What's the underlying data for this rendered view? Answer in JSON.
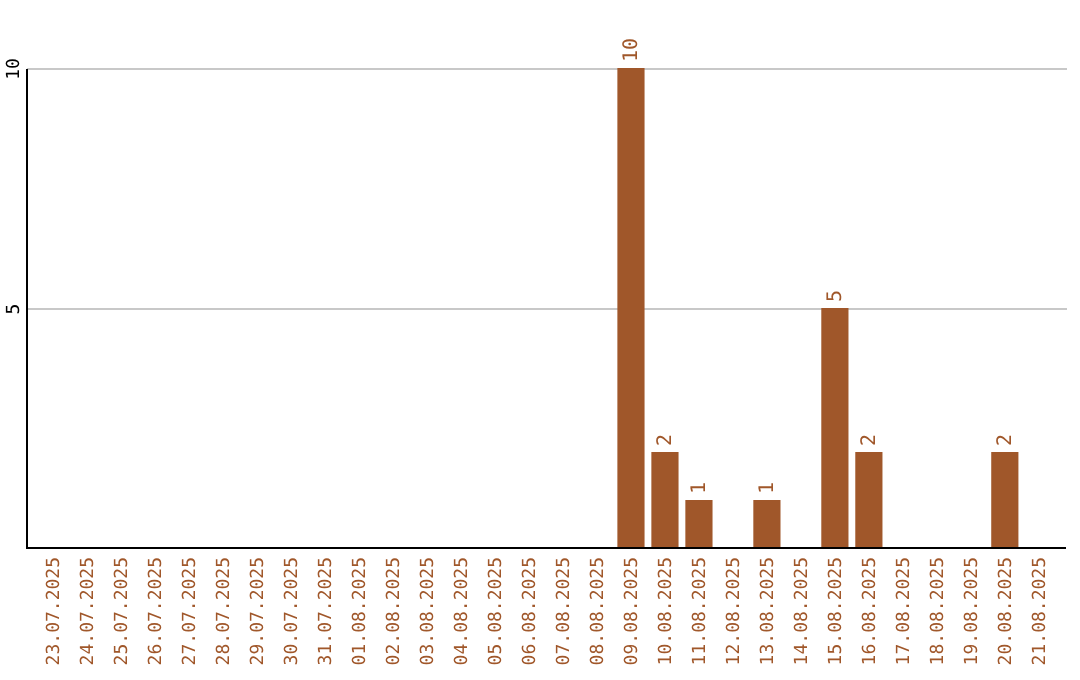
{
  "chart_data": {
    "type": "bar",
    "categories": [
      "23.07.2025",
      "24.07.2025",
      "25.07.2025",
      "26.07.2025",
      "27.07.2025",
      "28.07.2025",
      "29.07.2025",
      "30.07.2025",
      "31.07.2025",
      "01.08.2025",
      "02.08.2025",
      "03.08.2025",
      "04.08.2025",
      "05.08.2025",
      "06.08.2025",
      "07.08.2025",
      "08.08.2025",
      "09.08.2025",
      "10.08.2025",
      "11.08.2025",
      "12.08.2025",
      "13.08.2025",
      "14.08.2025",
      "15.08.2025",
      "16.08.2025",
      "17.08.2025",
      "18.08.2025",
      "19.08.2025",
      "20.08.2025",
      "21.08.2025"
    ],
    "values": [
      null,
      null,
      null,
      null,
      null,
      null,
      null,
      null,
      null,
      null,
      null,
      null,
      null,
      null,
      null,
      null,
      null,
      10,
      2,
      1,
      null,
      1,
      null,
      5,
      2,
      null,
      null,
      null,
      2,
      null
    ],
    "color": "#a0572a",
    "ylim": [
      0,
      10
    ],
    "yticks": [
      5,
      10
    ],
    "grid": "y",
    "data_labels": true
  }
}
